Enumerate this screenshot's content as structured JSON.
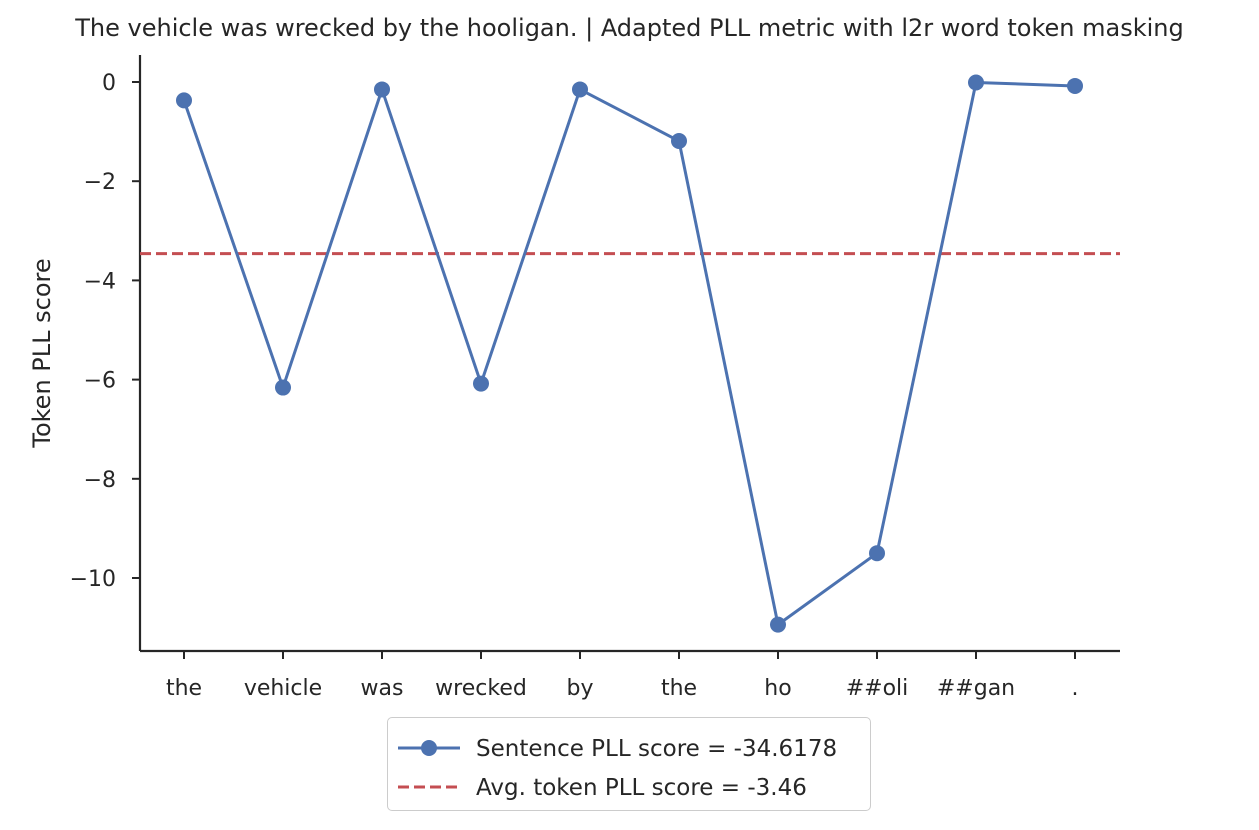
{
  "chart_data": {
    "type": "line",
    "title": "The vehicle was wrecked by the hooligan. | Adapted PLL metric with l2r word token masking",
    "xlabel": "",
    "ylabel": "Token PLL score",
    "categories": [
      "the",
      "vehicle",
      "was",
      "wrecked",
      "by",
      "the",
      "ho",
      "##oli",
      "##gan",
      "."
    ],
    "series": [
      {
        "name": "Sentence PLL score = -34.6178",
        "style": "line-marker",
        "color": "#4c72b0",
        "values": [
          -0.37,
          -6.16,
          -0.15,
          -6.08,
          -0.15,
          -1.19,
          -10.94,
          -9.5,
          -0.01,
          -0.08
        ]
      }
    ],
    "reference_lines": [
      {
        "name": "Avg. token PLL score = -3.46",
        "style": "dashed",
        "color": "#c44e52",
        "value": -3.46
      }
    ],
    "yticks": [
      0,
      -2,
      -4,
      -6,
      -8,
      -10
    ],
    "ytick_labels": [
      "0",
      "−2",
      "−4",
      "−6",
      "−8",
      "−10"
    ],
    "ylim": [
      -11.5,
      0.57
    ],
    "grid": false,
    "legend_position": "bottom-center"
  }
}
